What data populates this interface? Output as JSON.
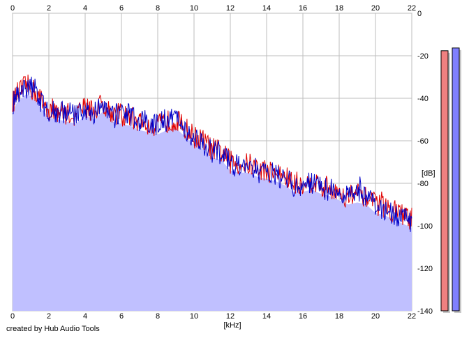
{
  "chart_data": {
    "type": "area",
    "xlabel": "[kHz]",
    "ylabel": "[dB]",
    "xlim": [
      0,
      22
    ],
    "ylim": [
      -140,
      0
    ],
    "x_ticks": [
      "0",
      "2",
      "4",
      "6",
      "8",
      "10",
      "12",
      "14",
      "16",
      "18",
      "20",
      "22"
    ],
    "y_ticks": [
      "0",
      "-20",
      "-40",
      "-60",
      "-80",
      "-100",
      "-120",
      "-140"
    ],
    "grid": true,
    "series": [
      {
        "color": "#e00000",
        "x": [
          0,
          0.25,
          0.5,
          0.75,
          1,
          1.25,
          1.5,
          2,
          2.5,
          3,
          3.5,
          4,
          4.5,
          5,
          5.5,
          6,
          6.5,
          7,
          7.5,
          8,
          8.5,
          9,
          9.5,
          10,
          10.5,
          11,
          11.5,
          12,
          12.5,
          13,
          13.5,
          14,
          14.5,
          15,
          15.5,
          16,
          16.5,
          17,
          17.5,
          18,
          18.5,
          19,
          19.5,
          20,
          20.5,
          21,
          21.5,
          22
        ],
        "y": [
          -42,
          -38,
          -36,
          -34,
          -35,
          -37,
          -40,
          -45,
          -46,
          -47,
          -48,
          -44,
          -46,
          -42,
          -47,
          -48,
          -49,
          -51,
          -52,
          -53,
          -51,
          -50,
          -54,
          -58,
          -60,
          -64,
          -65,
          -70,
          -71,
          -71,
          -73,
          -74,
          -75,
          -77,
          -80,
          -80,
          -79,
          -81,
          -82,
          -84,
          -86,
          -85,
          -86,
          -90,
          -91,
          -93,
          -95,
          -97
        ]
      },
      {
        "color": "#0000c8",
        "x": [
          0,
          0.25,
          0.5,
          0.75,
          1,
          1.25,
          1.5,
          2,
          2.5,
          3,
          3.5,
          4,
          4.5,
          5,
          5.5,
          6,
          6.5,
          7,
          7.5,
          8,
          8.5,
          9,
          9.5,
          10,
          10.5,
          11,
          11.5,
          12,
          12.5,
          13,
          13.5,
          14,
          14.5,
          15,
          15.5,
          16,
          16.5,
          17,
          17.5,
          18,
          18.5,
          19,
          19.5,
          20,
          20.5,
          21,
          21.5,
          22
        ],
        "y": [
          -43,
          -39,
          -37,
          -35,
          -34,
          -36,
          -41,
          -46,
          -47,
          -46,
          -48,
          -45,
          -47,
          -43,
          -46,
          -47,
          -48,
          -50,
          -51,
          -52,
          -50,
          -49,
          -55,
          -59,
          -61,
          -65,
          -66,
          -71,
          -72,
          -70,
          -74,
          -75,
          -76,
          -78,
          -81,
          -81,
          -80,
          -82,
          -83,
          -85,
          -87,
          -84,
          -87,
          -91,
          -92,
          -94,
          -96,
          -98
        ]
      }
    ],
    "fill_color": "#c0c0ff",
    "level_meters": [
      {
        "color": "#f08080",
        "level": 0.94
      },
      {
        "color": "#8080ff",
        "level": 0.95
      }
    ]
  },
  "credit": "created by Hub Audio Tools"
}
